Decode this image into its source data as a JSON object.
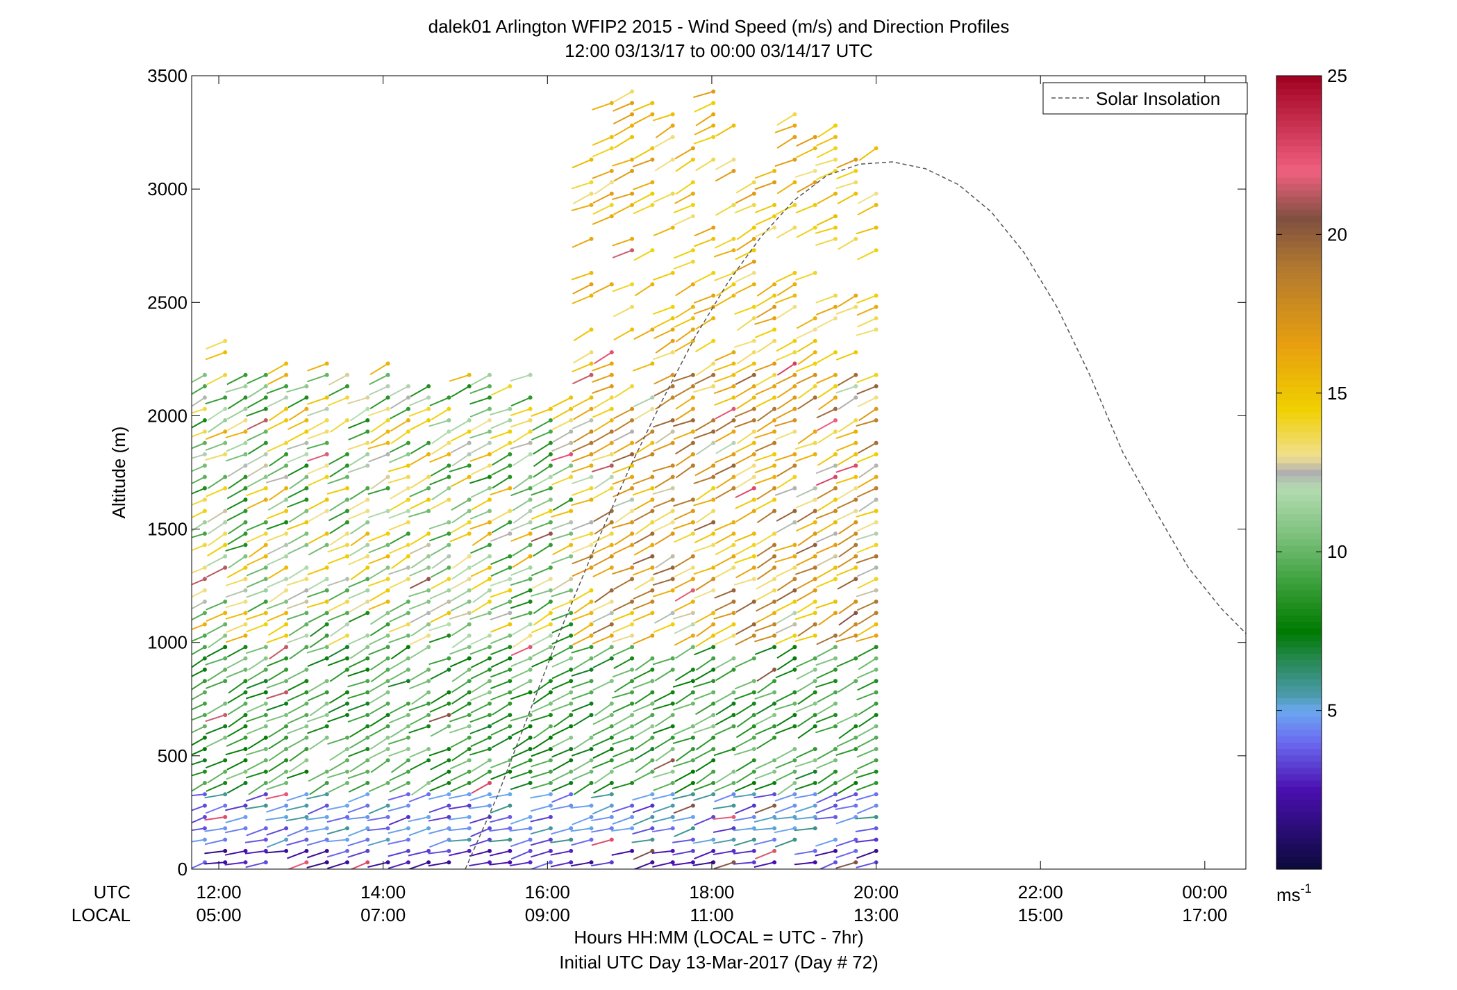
{
  "chart_data": {
    "type": "wind-barb-profile",
    "title_line1": "dalek01 Arlington WFIP2 2015 - Wind Speed (m/s) and Direction Profiles",
    "title_line2": "12:00 03/13/17 to 00:00 03/14/17  UTC",
    "ylabel": "Altitude (m)",
    "ylim": [
      0,
      3500
    ],
    "yticks": [
      0,
      500,
      1000,
      1500,
      2000,
      2500,
      3000,
      3500
    ],
    "xlim_hours_utc": [
      11.67,
      24.5
    ],
    "utc_row_label": "UTC",
    "local_row_label": "LOCAL",
    "xtick_hours": [
      12,
      14,
      16,
      18,
      20,
      22,
      24
    ],
    "xtick_utc_labels": [
      "12:00",
      "14:00",
      "16:00",
      "18:00",
      "20:00",
      "22:00",
      "00:00"
    ],
    "xtick_local_labels": [
      "05:00",
      "07:00",
      "09:00",
      "11:00",
      "13:00",
      "15:00",
      "17:00"
    ],
    "xlabel_line1": "Hours HH:MM  (LOCAL = UTC - 7hr)",
    "xlabel_line2": "Initial UTC Day 13-Mar-2017 (Day # 72)",
    "legend": {
      "label": "Solar Insolation",
      "placement": "top-right",
      "line_style": "dashed",
      "color": "#555555"
    },
    "colorbar": {
      "range": [
        0,
        25
      ],
      "ticks": [
        5,
        10,
        15,
        20,
        25
      ],
      "unit_base": "ms",
      "unit_exp": "-1",
      "stops": [
        {
          "v": 0,
          "c": "#0a0a3a"
        },
        {
          "v": 2.5,
          "c": "#4a0fb0"
        },
        {
          "v": 4,
          "c": "#6b6af0"
        },
        {
          "v": 5,
          "c": "#6aa8f0"
        },
        {
          "v": 5.5,
          "c": "#4a9aaa"
        },
        {
          "v": 6.5,
          "c": "#2a8a5a"
        },
        {
          "v": 7.5,
          "c": "#007a00"
        },
        {
          "v": 9,
          "c": "#3aa03a"
        },
        {
          "v": 10.5,
          "c": "#7cc07c"
        },
        {
          "v": 12,
          "c": "#b4dcb0"
        },
        {
          "v": 12.5,
          "c": "#b0b0b0"
        },
        {
          "v": 13,
          "c": "#f0e090"
        },
        {
          "v": 14.5,
          "c": "#f0d000"
        },
        {
          "v": 16.5,
          "c": "#e8a010"
        },
        {
          "v": 19,
          "c": "#b07830"
        },
        {
          "v": 20.5,
          "c": "#805040"
        },
        {
          "v": 22,
          "c": "#f06080"
        },
        {
          "v": 25,
          "c": "#a00020"
        }
      ]
    },
    "solar_insolation_curve": {
      "x_hours_utc": [
        15.0,
        15.4,
        15.8,
        16.2,
        16.6,
        17.0,
        17.4,
        17.8,
        18.2,
        18.6,
        19.0,
        19.4,
        19.8,
        20.2,
        20.6,
        21.0,
        21.4,
        21.8,
        22.2,
        22.6,
        23.0,
        23.4,
        23.8,
        24.2,
        24.5
      ],
      "altitude_m": [
        0,
        330,
        710,
        1090,
        1440,
        1770,
        2070,
        2350,
        2590,
        2790,
        2950,
        3060,
        3110,
        3120,
        3090,
        3020,
        2900,
        2720,
        2480,
        2180,
        1840,
        1580,
        1330,
        1150,
        1040
      ]
    },
    "wind_barbs_summary": {
      "time_range_hours_utc": [
        11.83,
        20.0
      ],
      "max_altitude_m": 3470,
      "layers": [
        {
          "altitude_m": [
            0,
            350
          ],
          "speed_ms": [
            2,
            5
          ],
          "note": "blue/purple low-level winds"
        },
        {
          "altitude_m": [
            350,
            1000
          ],
          "speed_ms": [
            7,
            11
          ],
          "note": "green winds"
        },
        {
          "altitude_m": [
            1000,
            2200
          ],
          "speed_ms": [
            10,
            20
          ],
          "note": "mixed yellow/orange/brown after 16:30"
        },
        {
          "altitude_m": [
            2200,
            3470
          ],
          "speed_ms": [
            12,
            18
          ],
          "note": "yellow/orange winds aloft"
        }
      ]
    }
  }
}
